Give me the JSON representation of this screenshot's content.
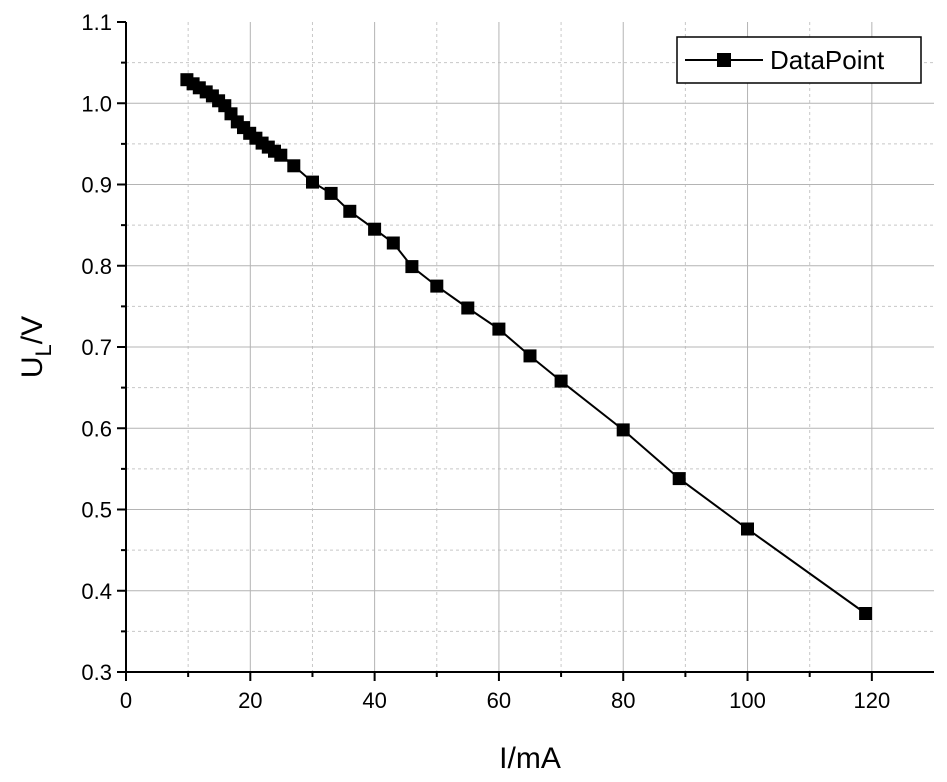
{
  "chart_data": {
    "type": "line",
    "xlabel": "I/mA",
    "ylabel_main": "U",
    "ylabel_sub": "L",
    "ylabel_suffix": "/V",
    "xlim": [
      0,
      130
    ],
    "ylim": [
      0.3,
      1.1
    ],
    "x_ticks": [
      0,
      20,
      40,
      60,
      80,
      100,
      120
    ],
    "x_tick_labels": [
      "0",
      "20",
      "40",
      "60",
      "80",
      "100",
      "120"
    ],
    "y_ticks": [
      0.3,
      0.4,
      0.5,
      0.6,
      0.7,
      0.8,
      0.9,
      1.0,
      1.1
    ],
    "y_tick_labels": [
      "0.3",
      "0.4",
      "0.5",
      "0.6",
      "0.7",
      "0.8",
      "0.9",
      "1.0",
      "1.1"
    ],
    "grid": true,
    "legend_position": "top-right",
    "series": [
      {
        "name": "DataPoint",
        "color": "#000000",
        "marker": "square",
        "x": [
          9.8,
          10.8,
          11.8,
          12.9,
          13.9,
          14.9,
          15.9,
          16.9,
          17.9,
          18.9,
          19.9,
          20.9,
          21.9,
          22.9,
          23.9,
          24.9,
          27.0,
          30.0,
          33.0,
          36.0,
          40.0,
          43.0,
          46.0,
          50.0,
          55.0,
          60.0,
          65.0,
          70.0,
          80.0,
          89.0,
          100.0,
          119.0
        ],
        "y": [
          1.029,
          1.024,
          1.019,
          1.014,
          1.009,
          1.003,
          0.997,
          0.987,
          0.977,
          0.97,
          0.963,
          0.957,
          0.951,
          0.946,
          0.941,
          0.936,
          0.923,
          0.903,
          0.889,
          0.867,
          0.845,
          0.828,
          0.799,
          0.775,
          0.748,
          0.722,
          0.689,
          0.658,
          0.598,
          0.538,
          0.476,
          0.372
        ]
      }
    ]
  }
}
